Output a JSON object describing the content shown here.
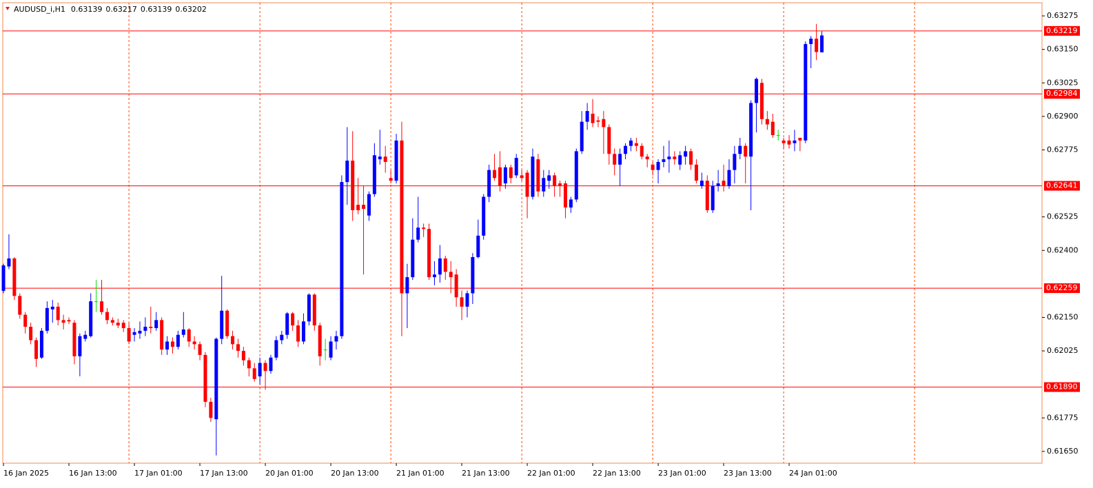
{
  "chart_data": {
    "type": "candlestick",
    "symbol": "AUDUSD_i,H1",
    "up_color": "#0000ff",
    "down_color": "#ff0000",
    "doji_color": "#00e000",
    "level_color": "#ff0000",
    "separator_color": "#ff4500",
    "open": [
      0.62249,
      0.6234,
      0.6237,
      0.6223,
      0.6216,
      0.62115,
      0.62065,
      0.62,
      0.621,
      0.6218,
      0.6219,
      0.6214,
      0.6214,
      0.6213,
      0.62005,
      0.6207,
      0.6208,
      0.6221,
      0.6221,
      0.6217,
      0.6214,
      0.6213,
      0.6213,
      0.6211,
      0.62085,
      0.6209,
      0.621,
      0.62115,
      0.6211,
      0.6214,
      0.6203,
      0.6206,
      0.6204,
      0.62085,
      0.62105,
      0.6206,
      0.6205,
      0.6201,
      0.61835,
      0.6177,
      0.6207,
      0.62175,
      0.6208,
      0.6205,
      0.62025,
      0.6199,
      0.6196,
      0.6193,
      0.6198,
      0.6195,
      0.62,
      0.62065,
      0.62085,
      0.62165,
      0.6212,
      0.6206,
      0.62135,
      0.62235,
      0.6212,
      0.6203,
      0.62,
      0.6206,
      0.6208,
      0.62655,
      0.62735,
      0.6257,
      0.6257,
      0.6253,
      0.6261,
      0.6274,
      0.6275,
      0.6267,
      0.6266,
      0.6281,
      0.6224,
      0.623,
      0.6244,
      0.62485,
      0.6248,
      0.623,
      0.6231,
      0.6237,
      0.6232,
      0.6231,
      0.62225,
      0.6219,
      0.6224,
      0.62375,
      0.62455,
      0.626,
      0.627,
      0.6271,
      0.6265,
      0.6271,
      0.6268,
      0.6268,
      0.6269,
      0.626,
      0.6274,
      0.6262,
      0.6266,
      0.6268,
      0.6265,
      0.6265,
      0.6256,
      0.6259,
      0.6277,
      0.6288,
      0.6291,
      0.62885,
      0.6289,
      0.6286,
      0.6276,
      0.6272,
      0.6276,
      0.6279,
      0.628,
      0.6279,
      0.6275,
      0.6272,
      0.627,
      0.6273,
      0.6274,
      0.6275,
      0.6272,
      0.6275,
      0.6277,
      0.6272,
      0.6264,
      0.6266,
      0.6255,
      0.6264,
      0.6266,
      0.6264,
      0.627,
      0.6276,
      0.6279,
      0.6275,
      0.6295,
      0.63025,
      0.6289,
      0.6288,
      0.6283,
      0.6281,
      0.6281,
      0.628,
      0.6282,
      0.6281,
      0.6317,
      0.6319,
      0.63139
    ],
    "high": [
      0.6235,
      0.6246,
      0.62375,
      0.6224,
      0.6217,
      0.6213,
      0.62075,
      0.6211,
      0.6221,
      0.62215,
      0.62205,
      0.6216,
      0.6215,
      0.6214,
      0.6209,
      0.621,
      0.6224,
      0.6229,
      0.6229,
      0.62185,
      0.6215,
      0.62145,
      0.6214,
      0.6213,
      0.6211,
      0.62135,
      0.6215,
      0.6219,
      0.6217,
      0.6215,
      0.6208,
      0.62075,
      0.621,
      0.6217,
      0.6211,
      0.6208,
      0.6206,
      0.6202,
      0.6185,
      0.62075,
      0.62305,
      0.6218,
      0.621,
      0.6207,
      0.6204,
      0.62,
      0.6198,
      0.62,
      0.6199,
      0.6201,
      0.6208,
      0.621,
      0.6217,
      0.6217,
      0.6214,
      0.62165,
      0.6224,
      0.6224,
      0.6213,
      0.6207,
      0.6208,
      0.621,
      0.6268,
      0.6286,
      0.62845,
      0.6267,
      0.6264,
      0.6262,
      0.628,
      0.6285,
      0.6279,
      0.627,
      0.62835,
      0.6288,
      0.6235,
      0.6252,
      0.626,
      0.625,
      0.625,
      0.6236,
      0.6242,
      0.6238,
      0.6236,
      0.6233,
      0.6225,
      0.6225,
      0.6239,
      0.62515,
      0.6261,
      0.6272,
      0.6276,
      0.6277,
      0.6272,
      0.6272,
      0.6276,
      0.627,
      0.627,
      0.6278,
      0.6276,
      0.627,
      0.627,
      0.6269,
      0.6266,
      0.6266,
      0.626,
      0.6278,
      0.6292,
      0.6295,
      0.62965,
      0.629,
      0.6292,
      0.6287,
      0.6278,
      0.6278,
      0.628,
      0.6282,
      0.6282,
      0.628,
      0.6276,
      0.6273,
      0.6274,
      0.6279,
      0.6281,
      0.6277,
      0.6277,
      0.6279,
      0.6278,
      0.6274,
      0.6269,
      0.6268,
      0.6266,
      0.627,
      0.6272,
      0.6274,
      0.6279,
      0.6282,
      0.628,
      0.6296,
      0.63045,
      0.6304,
      0.6292,
      0.6291,
      0.6285,
      0.6282,
      0.6283,
      0.6285,
      0.6282,
      0.6318,
      0.632,
      0.63245,
      0.63217
    ],
    "low": [
      0.6224,
      0.6233,
      0.62215,
      0.62145,
      0.6209,
      0.6205,
      0.61965,
      0.61995,
      0.6209,
      0.6213,
      0.6212,
      0.62105,
      0.62125,
      0.61975,
      0.6193,
      0.6206,
      0.62075,
      0.6217,
      0.6216,
      0.62125,
      0.6212,
      0.6211,
      0.62095,
      0.6205,
      0.6206,
      0.6207,
      0.6208,
      0.6209,
      0.621,
      0.6201,
      0.6201,
      0.62015,
      0.6203,
      0.62075,
      0.6204,
      0.6203,
      0.6199,
      0.61815,
      0.6176,
      0.61635,
      0.6205,
      0.6207,
      0.6203,
      0.62,
      0.6197,
      0.6193,
      0.6191,
      0.619,
      0.6188,
      0.6194,
      0.6199,
      0.6205,
      0.6207,
      0.621,
      0.6204,
      0.6205,
      0.6212,
      0.621,
      0.6197,
      0.6199,
      0.6199,
      0.6203,
      0.6207,
      0.6257,
      0.6251,
      0.62535,
      0.6231,
      0.6251,
      0.626,
      0.6272,
      0.6269,
      0.6265,
      0.6265,
      0.6208,
      0.6211,
      0.6229,
      0.6243,
      0.6245,
      0.6229,
      0.6227,
      0.6228,
      0.6229,
      0.6224,
      0.6219,
      0.6214,
      0.6215,
      0.622,
      0.6237,
      0.6244,
      0.6258,
      0.6266,
      0.6262,
      0.6263,
      0.6265,
      0.6267,
      0.6266,
      0.6252,
      0.6259,
      0.626,
      0.626,
      0.6263,
      0.626,
      0.626,
      0.6252,
      0.6254,
      0.6258,
      0.6276,
      0.6285,
      0.6286,
      0.6286,
      0.6276,
      0.6272,
      0.6268,
      0.6264,
      0.6274,
      0.6277,
      0.6277,
      0.6274,
      0.6271,
      0.6268,
      0.6265,
      0.6271,
      0.6269,
      0.6272,
      0.627,
      0.6272,
      0.627,
      0.6265,
      0.6263,
      0.6254,
      0.6254,
      0.6262,
      0.6262,
      0.6263,
      0.6265,
      0.6274,
      0.6265,
      0.6255,
      0.6284,
      0.6287,
      0.6285,
      0.6282,
      0.6281,
      0.6278,
      0.6278,
      0.6277,
      0.6277,
      0.628,
      0.6308,
      0.6311,
      0.63139
    ],
    "close": [
      0.62344,
      0.6237,
      0.6223,
      0.6216,
      0.62115,
      0.62065,
      0.61995,
      0.621,
      0.62185,
      0.6219,
      0.6214,
      0.6213,
      0.62135,
      0.62005,
      0.6208,
      0.62085,
      0.6221,
      0.6221,
      0.6217,
      0.6214,
      0.6213,
      0.6212,
      0.6211,
      0.6206,
      0.62095,
      0.621,
      0.62115,
      0.6211,
      0.6214,
      0.6203,
      0.6206,
      0.6204,
      0.62085,
      0.62105,
      0.6206,
      0.6205,
      0.6201,
      0.61835,
      0.61775,
      0.6207,
      0.62175,
      0.6208,
      0.6205,
      0.62025,
      0.6199,
      0.6196,
      0.6192,
      0.6198,
      0.6195,
      0.62,
      0.62065,
      0.62085,
      0.62165,
      0.6212,
      0.6206,
      0.62135,
      0.62235,
      0.6212,
      0.62005,
      0.6203,
      0.6206,
      0.6208,
      0.62655,
      0.62735,
      0.6255,
      0.6255,
      0.62555,
      0.6261,
      0.62755,
      0.6275,
      0.6273,
      0.6266,
      0.6281,
      0.6224,
      0.623,
      0.6244,
      0.62485,
      0.6248,
      0.623,
      0.6231,
      0.6237,
      0.6232,
      0.623,
      0.62225,
      0.6219,
      0.6224,
      0.62375,
      0.62455,
      0.626,
      0.627,
      0.6267,
      0.6264,
      0.6271,
      0.6267,
      0.62745,
      0.6267,
      0.626,
      0.6275,
      0.6262,
      0.6267,
      0.6268,
      0.6264,
      0.6264,
      0.6256,
      0.6259,
      0.6277,
      0.6288,
      0.6292,
      0.62875,
      0.6288,
      0.6286,
      0.6276,
      0.6272,
      0.6276,
      0.6279,
      0.6281,
      0.6279,
      0.6275,
      0.6274,
      0.627,
      0.6273,
      0.6274,
      0.6275,
      0.6274,
      0.62755,
      0.6277,
      0.6272,
      0.6266,
      0.6266,
      0.6255,
      0.6264,
      0.6265,
      0.6264,
      0.627,
      0.6276,
      0.6279,
      0.6275,
      0.6295,
      0.6304,
      0.6289,
      0.6287,
      0.6283,
      0.6283,
      0.628,
      0.62795,
      0.6281,
      0.6281,
      0.6317,
      0.6319,
      0.6314,
      0.63202
    ],
    "xlim": [
      -0.13,
      190.35
    ],
    "ylim": [
      0.61606,
      0.63324
    ],
    "xticks": [
      {
        "value": 0,
        "label": "16 Jan 2025"
      },
      {
        "value": 12,
        "label": "16 Jan 13:00"
      },
      {
        "value": 24,
        "label": "17 Jan 01:00"
      },
      {
        "value": 36,
        "label": "17 Jan 13:00"
      },
      {
        "value": 48,
        "label": "20 Jan 01:00"
      },
      {
        "value": 60,
        "label": "20 Jan 13:00"
      },
      {
        "value": 72,
        "label": "21 Jan 01:00"
      },
      {
        "value": 84,
        "label": "21 Jan 13:00"
      },
      {
        "value": 96,
        "label": "22 Jan 01:00"
      },
      {
        "value": 108,
        "label": "22 Jan 13:00"
      },
      {
        "value": 120,
        "label": "23 Jan 01:00"
      },
      {
        "value": 132,
        "label": "23 Jan 13:00"
      },
      {
        "value": 144,
        "label": "24 Jan 01:00"
      }
    ],
    "separators": [
      23,
      47,
      71,
      95,
      119,
      143,
      167
    ],
    "yticks": [
      0.63275,
      {
        "value": 0.6315,
        "label": "0.63150"
      },
      0.63025,
      {
        "value": 0.629,
        "label": "0.62900"
      },
      0.62775,
      0.62525,
      {
        "value": 0.624,
        "label": "0.62400"
      },
      {
        "value": 0.6215,
        "label": "0.62150"
      },
      0.62025,
      0.61775,
      {
        "value": 0.6165,
        "label": "0.61650"
      }
    ],
    "levels": [
      0.63219,
      0.62984,
      0.62641,
      0.62259,
      {
        "value": 0.6189,
        "label": "0.61890"
      }
    ]
  }
}
